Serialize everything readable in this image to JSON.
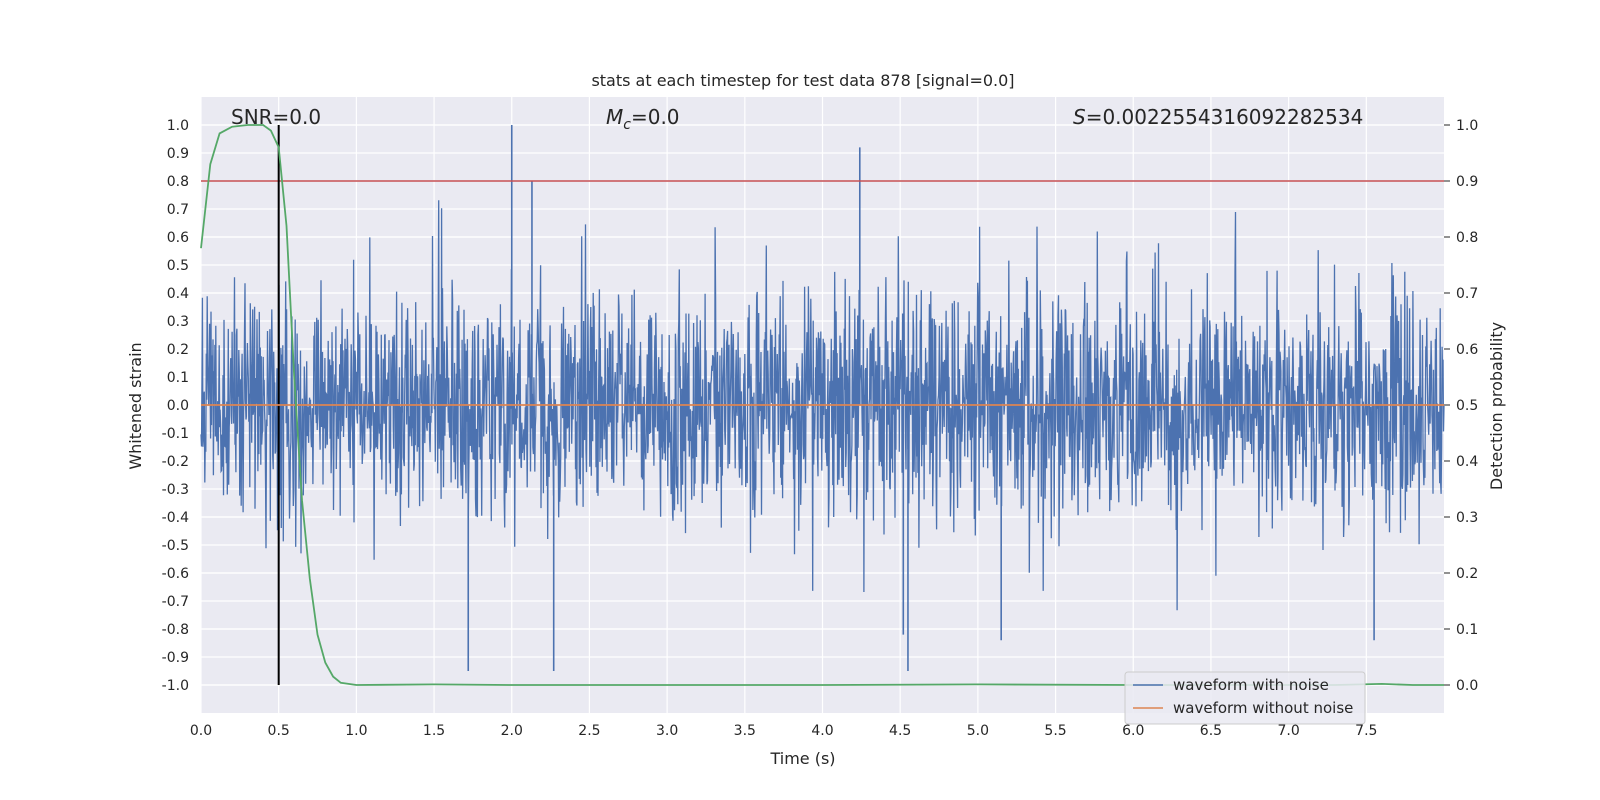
{
  "chart_data": {
    "type": "line",
    "title": "stats at each timestep for test data 878 [signal=0.0]",
    "xlabel": "Time (s)",
    "ylabel": "Whitened strain",
    "y2label": "Detection probability",
    "xlim": [
      0.0,
      8.0
    ],
    "ylim": [
      -1.1,
      1.1
    ],
    "y2lim": [
      -0.05,
      1.05
    ],
    "xticks": [
      0.0,
      0.5,
      1.0,
      1.5,
      2.0,
      2.5,
      3.0,
      3.5,
      4.0,
      4.5,
      5.0,
      5.5,
      6.0,
      6.5,
      7.0,
      7.5
    ],
    "xtick_labels": [
      "0.0",
      "0.5",
      "1.0",
      "1.5",
      "2.0",
      "2.5",
      "3.0",
      "3.5",
      "4.0",
      "4.5",
      "5.0",
      "5.5",
      "6.0",
      "6.5",
      "7.0",
      "7.5"
    ],
    "yticks": [
      1.0,
      0.9,
      0.8,
      0.7,
      0.6,
      0.5,
      0.4,
      0.3,
      0.2,
      0.1,
      0.0,
      -0.1,
      -0.2,
      -0.3,
      -0.4,
      -0.5,
      -0.6,
      -0.7,
      -0.8,
      -0.9,
      -1.0
    ],
    "ytick_labels": [
      "1.0",
      "0.9",
      "0.8",
      "0.7",
      "0.6",
      "0.5",
      "0.4",
      "0.3",
      "0.2",
      "0.1",
      "0.0",
      "-0.1",
      "-0.2",
      "-0.3",
      "-0.4",
      "-0.5",
      "-0.6",
      "-0.7",
      "-0.8",
      "-0.9",
      "-1.0"
    ],
    "y2ticks": [
      1.0,
      0.9,
      0.8,
      0.7,
      0.6,
      0.5,
      0.4,
      0.3,
      0.2,
      0.1,
      0.0
    ],
    "y2tick_labels": [
      "1.0",
      "0.9",
      "0.8",
      "0.7",
      "0.6",
      "0.5",
      "0.4",
      "0.3",
      "0.2",
      "0.1",
      "0.0"
    ],
    "grid": true,
    "legend_position": "lower-right",
    "annotations": {
      "snr_text": "SNR=0.0",
      "mc_prefix": "M",
      "mc_sub": "c",
      "mc_value": "=0.0",
      "s_prefix": "S",
      "s_value": "=0.002255431609228253​4"
    },
    "series": [
      {
        "name": "waveform with noise",
        "color": "#4c72b0",
        "axis": "left",
        "description": "whitened noise, dense, roughly within -0.45..0.45 with spikes",
        "peaks": [
          {
            "x": 0.5,
            "y": 0.7
          },
          {
            "x": 2.0,
            "y": 1.0
          },
          {
            "x": 2.13,
            "y": 0.8
          },
          {
            "x": 4.24,
            "y": 0.92
          },
          {
            "x": 1.72,
            "y": -0.95
          },
          {
            "x": 2.27,
            "y": -0.95
          },
          {
            "x": 4.55,
            "y": -0.95
          },
          {
            "x": 4.52,
            "y": -0.82
          },
          {
            "x": 5.15,
            "y": -0.84
          },
          {
            "x": 7.55,
            "y": -0.84
          }
        ]
      },
      {
        "name": "waveform without noise",
        "color": "#dd8452",
        "axis": "left",
        "x": [
          0.0,
          8.0
        ],
        "y": [
          0.0,
          0.0
        ]
      },
      {
        "name": "detection probability",
        "color": "#55a868",
        "axis": "right",
        "x": [
          0.0,
          0.06,
          0.12,
          0.2,
          0.3,
          0.4,
          0.45,
          0.5,
          0.55,
          0.6,
          0.65,
          0.7,
          0.75,
          0.8,
          0.85,
          0.9,
          1.0,
          1.5,
          2.0,
          3.0,
          4.0,
          5.0,
          6.0,
          7.0,
          7.3,
          7.6,
          7.8,
          8.0
        ],
        "y": [
          0.78,
          0.93,
          0.985,
          0.997,
          1.0,
          1.0,
          0.99,
          0.96,
          0.82,
          0.55,
          0.33,
          0.19,
          0.09,
          0.04,
          0.015,
          0.004,
          0.0,
          0.001,
          0.0,
          0.0,
          0.0,
          0.001,
          0.0,
          0.0,
          0.0,
          0.002,
          0.0,
          0.0
        ]
      }
    ],
    "reference_lines": [
      {
        "name": "threshold",
        "orientation": "horizontal",
        "axis": "right",
        "value": 0.9,
        "color": "#c44e52"
      },
      {
        "name": "marker",
        "orientation": "vertical",
        "value": 0.5,
        "color": "#000000"
      }
    ],
    "legend": [
      {
        "label": "waveform with noise",
        "color": "#4c72b0"
      },
      {
        "label": "waveform without noise",
        "color": "#dd8452"
      }
    ]
  }
}
